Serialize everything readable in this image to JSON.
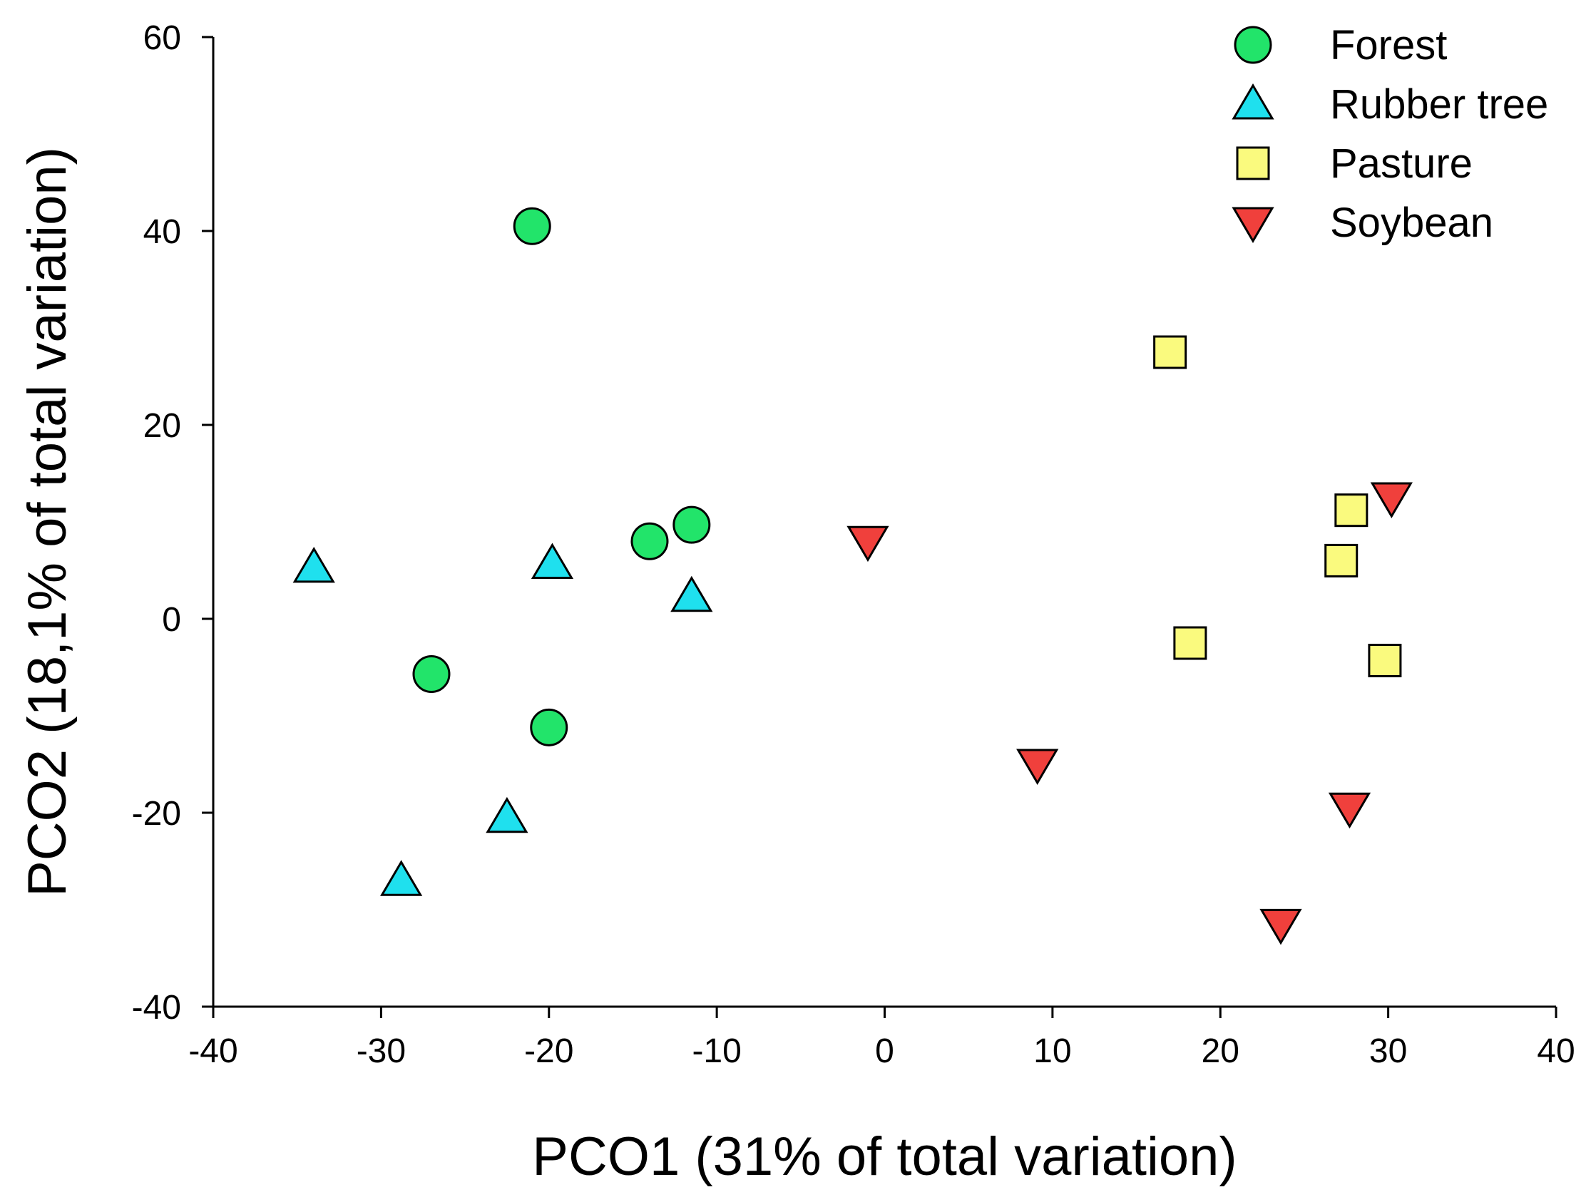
{
  "chart_data": {
    "type": "scatter",
    "title": "",
    "xlabel": "PCO1 (31% of total variation)",
    "ylabel": "PCO2 (18,1% of total variation)",
    "xlim": [
      -40,
      40
    ],
    "ylim": [
      -40,
      60
    ],
    "xticks": [
      -40,
      -30,
      -20,
      -10,
      0,
      10,
      20,
      30,
      40
    ],
    "yticks": [
      -40,
      -20,
      0,
      20,
      40,
      60
    ],
    "grid": false,
    "legend_position": "top-right",
    "series": [
      {
        "name": "Forest",
        "marker": "circle",
        "color": "#22e46a",
        "points": [
          [
            -21,
            40.5
          ],
          [
            -14,
            8
          ],
          [
            -11.5,
            9.7
          ],
          [
            -27,
            -5.7
          ],
          [
            -20,
            -11.2
          ]
        ]
      },
      {
        "name": "Rubber tree",
        "marker": "triangle-up",
        "color": "#1fe0ee",
        "points": [
          [
            -34,
            5.3
          ],
          [
            -19.8,
            5.7
          ],
          [
            -11.5,
            2.3
          ],
          [
            -22.5,
            -20.5
          ],
          [
            -28.8,
            -27
          ]
        ]
      },
      {
        "name": "Pasture",
        "marker": "square",
        "color": "#fafa7e",
        "points": [
          [
            17,
            27.5
          ],
          [
            27.8,
            11.2
          ],
          [
            27.2,
            6
          ],
          [
            18.2,
            -2.5
          ],
          [
            29.8,
            -4.3
          ]
        ]
      },
      {
        "name": "Soybean",
        "marker": "triangle-down",
        "color": "#f0403c",
        "points": [
          [
            -1,
            8
          ],
          [
            30.2,
            12.5
          ],
          [
            9.1,
            -15
          ],
          [
            27.7,
            -19.5
          ],
          [
            23.6,
            -31.5
          ]
        ]
      }
    ]
  }
}
